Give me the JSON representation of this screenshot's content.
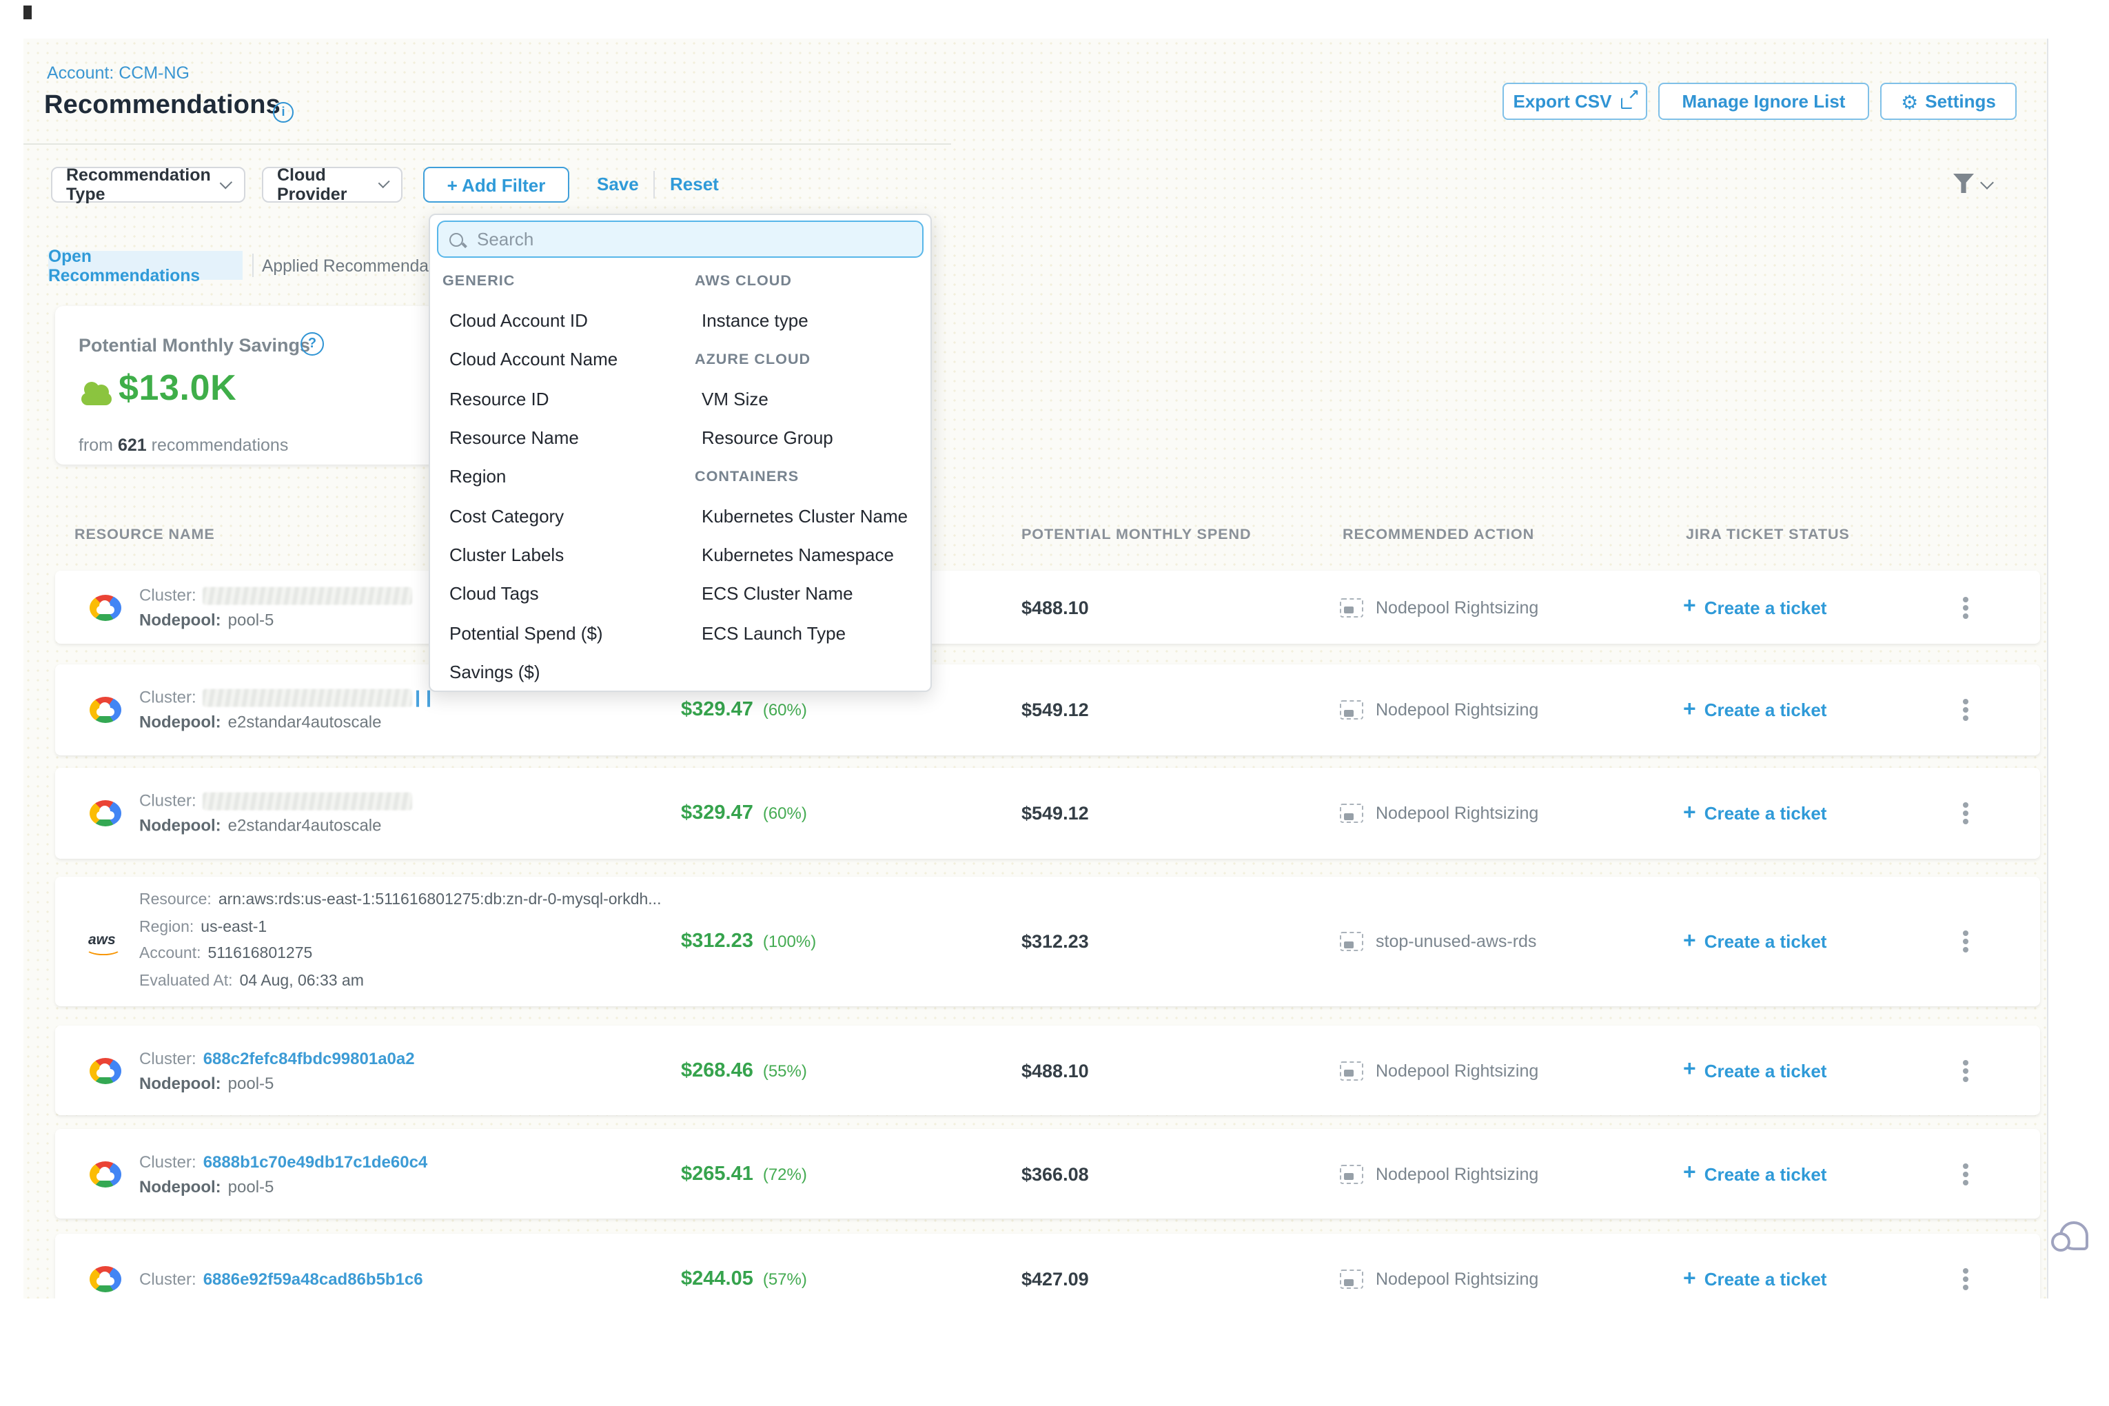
{
  "page": {
    "account_breadcrumb": "Account: CCM-NG",
    "title": "Recommendations"
  },
  "toolbar": {
    "export_csv": "Export CSV",
    "manage_ignore_list": "Manage Ignore List",
    "settings": "Settings"
  },
  "filter_bar": {
    "recommendation_type": "Recommendation Type",
    "cloud_provider": "Cloud Provider",
    "add_filter": "+ Add Filter",
    "save": "Save",
    "reset": "Reset"
  },
  "tabs": {
    "open": "Open Recommendations",
    "applied": "Applied Recommendatio"
  },
  "summary_card": {
    "title": "Potential Monthly Savings",
    "value": "$13.0K",
    "subtitle_prefix": "from ",
    "count": "621",
    "subtitle_suffix": " recommendations"
  },
  "filter_dropdown": {
    "search_placeholder": "Search",
    "left_column": [
      {
        "type": "header",
        "label": "GENERIC"
      },
      {
        "type": "item",
        "label": "Cloud Account ID"
      },
      {
        "type": "item",
        "label": "Cloud Account Name"
      },
      {
        "type": "item",
        "label": "Resource ID"
      },
      {
        "type": "item",
        "label": "Resource Name"
      },
      {
        "type": "item",
        "label": "Region"
      },
      {
        "type": "item",
        "label": "Cost Category"
      },
      {
        "type": "item",
        "label": "Cluster Labels"
      },
      {
        "type": "item",
        "label": "Cloud Tags"
      },
      {
        "type": "item",
        "label": "Potential Spend ($)"
      },
      {
        "type": "item",
        "label": "Savings ($)"
      }
    ],
    "right_column": [
      {
        "type": "header",
        "label": "AWS CLOUD"
      },
      {
        "type": "item",
        "label": "Instance type"
      },
      {
        "type": "header",
        "label": "AZURE CLOUD"
      },
      {
        "type": "item",
        "label": "VM Size"
      },
      {
        "type": "item",
        "label": "Resource Group"
      },
      {
        "type": "header",
        "label": "CONTAINERS"
      },
      {
        "type": "item",
        "label": "Kubernetes Cluster Name"
      },
      {
        "type": "item",
        "label": "Kubernetes Namespace"
      },
      {
        "type": "item",
        "label": "ECS Cluster Name"
      },
      {
        "type": "item",
        "label": "ECS Launch Type"
      }
    ]
  },
  "table": {
    "columns": [
      "RESOURCE NAME",
      "POTENTIAL MONTHLY SPEND",
      "RECOMMENDED ACTION",
      "JIRA TICKET STATUS"
    ],
    "create_ticket_plus": "+",
    "create_ticket_label": "Create a ticket",
    "rows": [
      {
        "provider": "gcp",
        "lines": [
          {
            "label": "Cluster:",
            "value": "",
            "redacted": true
          },
          {
            "label": "Nodepool:",
            "value": "pool-5"
          }
        ],
        "savings": null,
        "savings_pct": null,
        "spend": "$488.10",
        "action": "Nodepool Rightsizing"
      },
      {
        "provider": "gcp",
        "lines": [
          {
            "label": "Cluster:",
            "value": "",
            "redacted": true,
            "fragment": true
          },
          {
            "label": "Nodepool:",
            "value": "e2standar4autoscale"
          }
        ],
        "savings": "$329.47",
        "savings_pct": "(60%)",
        "spend": "$549.12",
        "action": "Nodepool Rightsizing"
      },
      {
        "provider": "gcp",
        "lines": [
          {
            "label": "Cluster:",
            "value": "",
            "redacted": true
          },
          {
            "label": "Nodepool:",
            "value": "e2standar4autoscale"
          }
        ],
        "savings": "$329.47",
        "savings_pct": "(60%)",
        "spend": "$549.12",
        "action": "Nodepool Rightsizing"
      },
      {
        "provider": "aws",
        "lines": [
          {
            "label": "Resource:",
            "value": "arn:aws:rds:us-east-1:511616801275:db:zn-dr-0-mysql-orkdh..."
          },
          {
            "label": "Region:",
            "value": "us-east-1"
          },
          {
            "label": "Account:",
            "value": "511616801275"
          },
          {
            "label": "Evaluated At:",
            "value": "04 Aug, 06:33 am"
          }
        ],
        "savings": "$312.23",
        "savings_pct": "(100%)",
        "spend": "$312.23",
        "action": "stop-unused-aws-rds"
      },
      {
        "provider": "gcp",
        "lines": [
          {
            "label": "Cluster:",
            "value": "688c2fefc84fbdc99801a0a2",
            "link": true
          },
          {
            "label": "Nodepool:",
            "value": "pool-5"
          }
        ],
        "savings": "$268.46",
        "savings_pct": "(55%)",
        "spend": "$488.10",
        "action": "Nodepool Rightsizing"
      },
      {
        "provider": "gcp",
        "lines": [
          {
            "label": "Cluster:",
            "value": "6888b1c70e49db17c1de60c4",
            "link": true
          },
          {
            "label": "Nodepool:",
            "value": "pool-5"
          }
        ],
        "savings": "$265.41",
        "savings_pct": "(72%)",
        "spend": "$366.08",
        "action": "Nodepool Rightsizing"
      },
      {
        "provider": "gcp",
        "lines": [
          {
            "label": "Cluster:",
            "value": "6886e92f59a48cad86b5b1c6",
            "link": true
          }
        ],
        "savings": "$244.05",
        "savings_pct": "(57%)",
        "spend": "$427.09",
        "action": "Nodepool Rightsizing"
      }
    ]
  },
  "colors": {
    "primary_blue": "#2f9ad8",
    "savings_green": "#36a34d",
    "link_blue": "#3c9bd5",
    "value_green_large": "#3fae49"
  }
}
